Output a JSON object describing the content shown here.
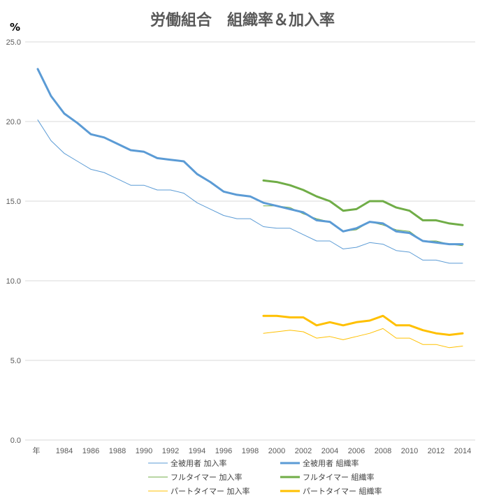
{
  "chart_data": {
    "type": "line",
    "title": "労働組合　組織率＆加入率",
    "unit_label": "%",
    "x_first_label": "年",
    "ylim": [
      0,
      25
    ],
    "y_ticks": [
      "0.0",
      "5.0",
      "10.0",
      "15.0",
      "20.0",
      "25.0"
    ],
    "x": [
      1982,
      1983,
      1984,
      1985,
      1986,
      1987,
      1988,
      1989,
      1990,
      1991,
      1992,
      1993,
      1994,
      1995,
      1996,
      1997,
      1998,
      1999,
      2000,
      2001,
      2002,
      2003,
      2004,
      2005,
      2006,
      2007,
      2008,
      2009,
      2010,
      2011,
      2012,
      2013,
      2014
    ],
    "x_tick_labels": [
      "1984",
      "1986",
      "1988",
      "1990",
      "1992",
      "1994",
      "1996",
      "1998",
      "2000",
      "2002",
      "2004",
      "2006",
      "2008",
      "2010",
      "2012",
      "2014"
    ],
    "grid": true,
    "legend_position": "bottom",
    "series": [
      {
        "name": "全被用者 加入率",
        "color": "#5b9bd5",
        "width": 1,
        "values": [
          20.1,
          18.8,
          18.0,
          17.5,
          17.0,
          16.8,
          16.4,
          16.0,
          16.0,
          15.7,
          15.7,
          15.5,
          14.9,
          14.5,
          14.1,
          13.9,
          13.9,
          13.4,
          13.3,
          13.3,
          12.9,
          12.5,
          12.5,
          12.0,
          12.1,
          12.4,
          12.3,
          11.9,
          11.8,
          11.3,
          11.3,
          11.1,
          11.1
        ]
      },
      {
        "name": "全被用者 組織率",
        "color": "#5b9bd5",
        "width": 3,
        "values": [
          23.3,
          21.6,
          20.5,
          19.9,
          19.2,
          19.0,
          18.6,
          18.2,
          18.1,
          17.7,
          17.6,
          17.5,
          16.7,
          16.2,
          15.6,
          15.4,
          15.3,
          14.9,
          14.7,
          14.5,
          14.3,
          13.8,
          13.7,
          13.1,
          13.3,
          13.7,
          13.6,
          13.1,
          13.0,
          12.5,
          12.4,
          12.3,
          12.3
        ]
      },
      {
        "name": "フルタイマー 加入率",
        "color": "#70ad47",
        "width": 1,
        "values": [
          null,
          null,
          null,
          null,
          null,
          null,
          null,
          null,
          null,
          null,
          null,
          null,
          null,
          null,
          null,
          null,
          null,
          14.7,
          14.7,
          14.6,
          14.2,
          13.9,
          13.7,
          13.1,
          13.2,
          13.7,
          13.5,
          13.2,
          13.1,
          12.5,
          12.5,
          12.3,
          12.2
        ]
      },
      {
        "name": "フルタイマー 組織率",
        "color": "#70ad47",
        "width": 3,
        "values": [
          null,
          null,
          null,
          null,
          null,
          null,
          null,
          null,
          null,
          null,
          null,
          null,
          null,
          null,
          null,
          null,
          null,
          16.3,
          16.2,
          16.0,
          15.7,
          15.3,
          15.0,
          14.4,
          14.5,
          15.0,
          15.0,
          14.6,
          14.4,
          13.8,
          13.8,
          13.6,
          13.5
        ]
      },
      {
        "name": "パートタイマー 加入率",
        "color": "#ffc000",
        "width": 1,
        "values": [
          null,
          null,
          null,
          null,
          null,
          null,
          null,
          null,
          null,
          null,
          null,
          null,
          null,
          null,
          null,
          null,
          null,
          6.7,
          6.8,
          6.9,
          6.8,
          6.4,
          6.5,
          6.3,
          6.5,
          6.7,
          7.0,
          6.4,
          6.4,
          6.0,
          6.0,
          5.8,
          5.9
        ]
      },
      {
        "name": "パートタイマー 組織率",
        "color": "#ffc000",
        "width": 3,
        "values": [
          null,
          null,
          null,
          null,
          null,
          null,
          null,
          null,
          null,
          null,
          null,
          null,
          null,
          null,
          null,
          null,
          null,
          7.8,
          7.8,
          7.7,
          7.7,
          7.2,
          7.4,
          7.2,
          7.4,
          7.5,
          7.8,
          7.2,
          7.2,
          6.9,
          6.7,
          6.6,
          6.7
        ]
      }
    ]
  }
}
